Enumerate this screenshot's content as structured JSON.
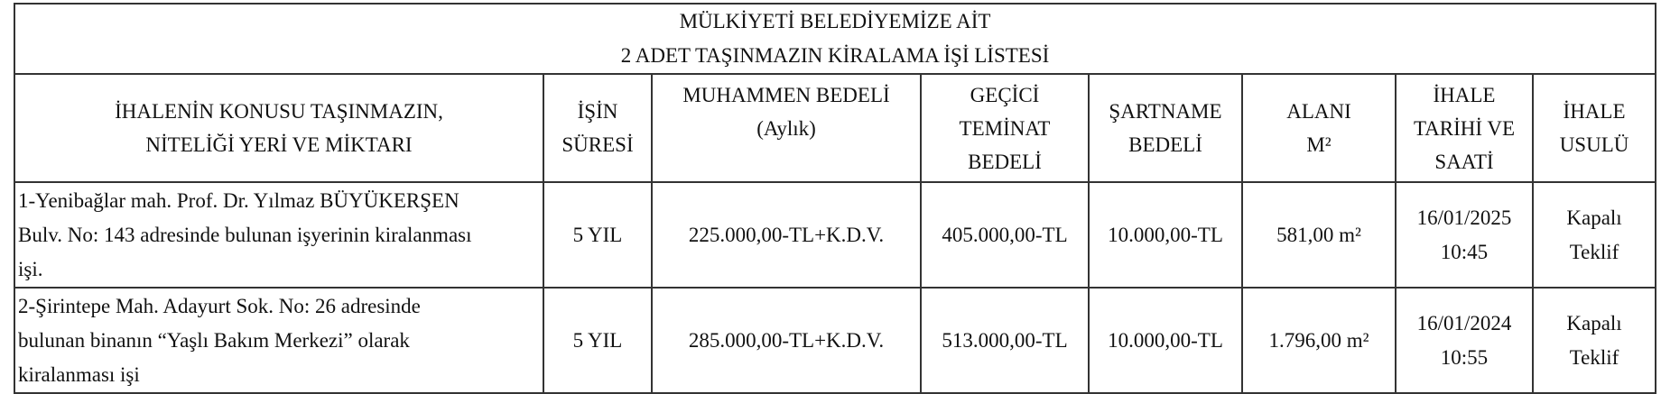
{
  "title": {
    "line1": "MÜLKİYETİ BELEDİYEMİZE AİT",
    "line2": "2 ADET TAŞINMAZIN KİRALAMA İŞİ LİSTESİ"
  },
  "columns": [
    {
      "l1": "İHALENİN KONUSU TAŞINMAZIN,",
      "l2": "NİTELİĞİ YERİ VE MİKTARI"
    },
    {
      "l1": "İŞİN",
      "l2": "SÜRESİ"
    },
    {
      "l1": "MUHAMMEN BEDELİ",
      "l2": "(Aylık)"
    },
    {
      "l1": "GEÇİCİ",
      "l2": "TEMİNAT",
      "l3": "BEDELİ"
    },
    {
      "l1": "ŞARTNAME",
      "l2": "BEDELİ"
    },
    {
      "l1": "ALANI",
      "l2": "M²"
    },
    {
      "l1": "İHALE",
      "l2": "TARİHİ VE",
      "l3": "SAATİ"
    },
    {
      "l1": "İHALE",
      "l2": "USULÜ"
    }
  ],
  "rows": [
    {
      "subject": [
        "1-Yenibağlar mah. Prof. Dr. Yılmaz BÜYÜKERŞEN",
        "Bulv. No: 143 adresinde bulunan işyerinin kiralanması",
        "işi."
      ],
      "duration": "5 YIL",
      "estimated_price": "225.000,00-TL+K.D.V.",
      "deposit": "405.000,00-TL",
      "spec_fee": "10.000,00-TL",
      "area": "581,00 m²",
      "date": "16/01/2025",
      "time": "10:45",
      "method_l1": "Kapalı",
      "method_l2": "Teklif"
    },
    {
      "subject": [
        "2-Şirintepe Mah. Adayurt Sok. No: 26 adresinde",
        "bulunan binanın “Yaşlı Bakım Merkezi” olarak",
        "kiralanması işi"
      ],
      "duration": "5 YIL",
      "estimated_price": "285.000,00-TL+K.D.V.",
      "deposit": "513.000,00-TL",
      "spec_fee": "10.000,00-TL",
      "area": "1.796,00 m²",
      "date": "16/01/2024",
      "time": "10:55",
      "method_l1": "Kapalı",
      "method_l2": "Teklif"
    }
  ]
}
